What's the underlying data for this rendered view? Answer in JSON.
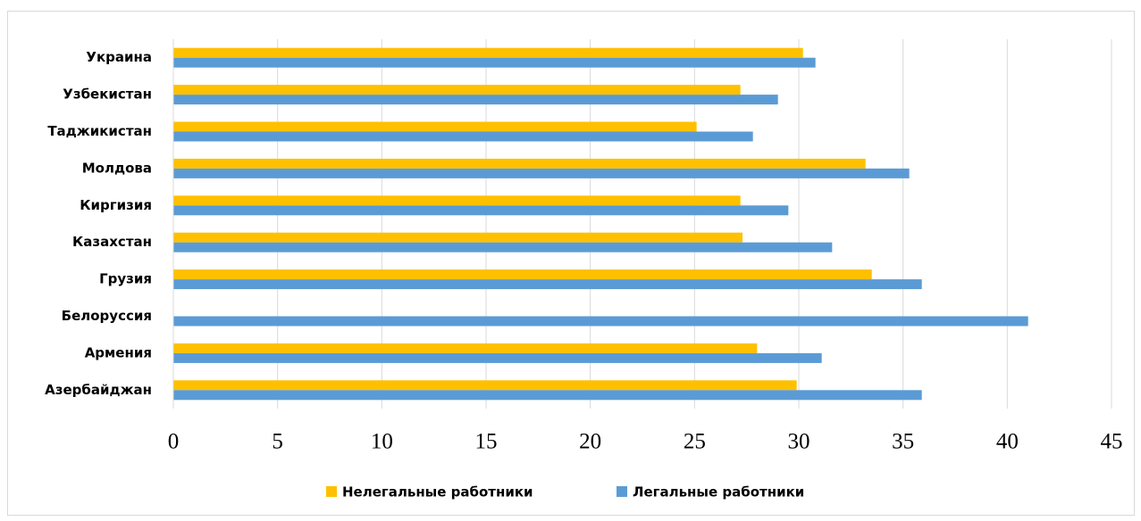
{
  "chart_data": {
    "type": "barh",
    "categories": [
      "Украина",
      "Узбекистан",
      "Таджикистан",
      "Молдова",
      "Киргизия",
      "Казахстан",
      "Грузия",
      "Белоруссия",
      "Армения",
      "Азербайджан"
    ],
    "series": [
      {
        "name": "Нелегальные работники",
        "color": "#ffc000",
        "values": [
          30.2,
          27.2,
          25.1,
          33.2,
          27.2,
          27.3,
          33.5,
          null,
          28.0,
          29.9
        ]
      },
      {
        "name": "Легальные работники",
        "color": "#5b9bd5",
        "values": [
          30.8,
          29.0,
          27.8,
          35.3,
          29.5,
          31.6,
          35.9,
          41.0,
          31.1,
          35.9
        ]
      }
    ],
    "xlim": [
      0,
      45
    ],
    "xticks": [
      0,
      5,
      10,
      15,
      20,
      25,
      30,
      35,
      40,
      45
    ],
    "grid": true,
    "legend": "bottom"
  }
}
